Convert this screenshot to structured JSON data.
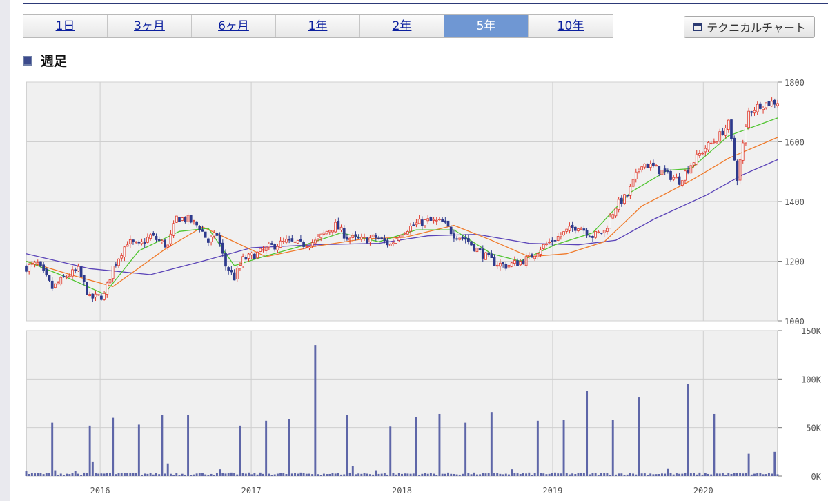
{
  "range_tabs": [
    "1日",
    "3ヶ月",
    "6ヶ月",
    "1年",
    "2年",
    "5年",
    "10年"
  ],
  "active_tab": "5年",
  "technical_chart_label": "テクニカルチャート",
  "section_title": "週足",
  "colors": {
    "up_candle": "#e0392b",
    "down_candle": "#2e3a8c",
    "ma_short": "#4fc52f",
    "ma_mid": "#f07a2a",
    "ma_long": "#5a43b8",
    "volume": "#5e66a8",
    "active_tab": "#6f97d3",
    "plot_bg": "#f0f0f0"
  },
  "chart_data": {
    "type": "candlestick",
    "price_axis": {
      "min": 1000,
      "max": 1800,
      "ticks": [
        1000,
        1200,
        1400,
        1600,
        1800
      ]
    },
    "volume_axis": {
      "min": 0,
      "max": 150000,
      "ticks": [
        0,
        50000,
        100000,
        150000
      ],
      "tick_labels": [
        "0K",
        "50K",
        "100K",
        "150K"
      ]
    },
    "x_start": "2015-07-06",
    "x_end": "2020-06-29",
    "year_labels": [
      {
        "label": "2016",
        "date": "2016-01-01"
      },
      {
        "label": "2017",
        "date": "2017-01-01"
      },
      {
        "label": "2018",
        "date": "2018-01-01"
      },
      {
        "label": "2019",
        "date": "2019-01-01"
      },
      {
        "label": "2020",
        "date": "2020-01-01"
      }
    ],
    "close_trend": [
      [
        "2015-07-06",
        1180
      ],
      [
        "2015-08-03",
        1190
      ],
      [
        "2015-09-07",
        1110
      ],
      [
        "2015-10-12",
        1150
      ],
      [
        "2015-11-09",
        1170
      ],
      [
        "2015-12-07",
        1075
      ],
      [
        "2016-01-11",
        1085
      ],
      [
        "2016-02-01",
        1180
      ],
      [
        "2016-03-07",
        1265
      ],
      [
        "2016-04-04",
        1250
      ],
      [
        "2016-05-02",
        1285
      ],
      [
        "2016-06-13",
        1250
      ],
      [
        "2016-07-04",
        1345
      ],
      [
        "2016-08-01",
        1340
      ],
      [
        "2016-08-29",
        1315
      ],
      [
        "2016-09-19",
        1265
      ],
      [
        "2016-10-10",
        1290
      ],
      [
        "2016-10-31",
        1185
      ],
      [
        "2016-11-21",
        1145
      ],
      [
        "2016-12-12",
        1205
      ],
      [
        "2017-01-16",
        1225
      ],
      [
        "2017-02-20",
        1250
      ],
      [
        "2017-03-27",
        1265
      ],
      [
        "2017-05-01",
        1255
      ],
      [
        "2017-06-05",
        1265
      ],
      [
        "2017-07-03",
        1300
      ],
      [
        "2017-07-24",
        1320
      ],
      [
        "2017-08-21",
        1280
      ],
      [
        "2017-09-25",
        1270
      ],
      [
        "2017-10-30",
        1280
      ],
      [
        "2017-12-04",
        1255
      ],
      [
        "2018-01-01",
        1300
      ],
      [
        "2018-02-05",
        1325
      ],
      [
        "2018-03-05",
        1335
      ],
      [
        "2018-04-09",
        1330
      ],
      [
        "2018-05-07",
        1290
      ],
      [
        "2018-06-04",
        1275
      ],
      [
        "2018-07-09",
        1230
      ],
      [
        "2018-08-13",
        1195
      ],
      [
        "2018-09-10",
        1185
      ],
      [
        "2018-10-08",
        1195
      ],
      [
        "2018-11-05",
        1210
      ],
      [
        "2018-12-03",
        1245
      ],
      [
        "2019-01-07",
        1275
      ],
      [
        "2019-02-04",
        1300
      ],
      [
        "2019-03-04",
        1320
      ],
      [
        "2019-04-08",
        1285
      ],
      [
        "2019-05-06",
        1300
      ],
      [
        "2019-06-03",
        1385
      ],
      [
        "2019-07-01",
        1420
      ],
      [
        "2019-08-05",
        1530
      ],
      [
        "2019-09-02",
        1515
      ],
      [
        "2019-10-07",
        1490
      ],
      [
        "2019-11-04",
        1470
      ],
      [
        "2019-12-02",
        1525
      ],
      [
        "2020-01-06",
        1580
      ],
      [
        "2020-02-03",
        1610
      ],
      [
        "2020-03-02",
        1660
      ],
      [
        "2020-03-23",
        1480
      ],
      [
        "2020-04-20",
        1700
      ],
      [
        "2020-05-18",
        1725
      ],
      [
        "2020-06-29",
        1735
      ]
    ],
    "ma_short": [
      [
        "2015-07-06",
        1200
      ],
      [
        "2015-10-05",
        1150
      ],
      [
        "2016-01-11",
        1090
      ],
      [
        "2016-04-04",
        1235
      ],
      [
        "2016-07-11",
        1300
      ],
      [
        "2016-09-19",
        1310
      ],
      [
        "2016-11-21",
        1185
      ],
      [
        "2017-01-30",
        1215
      ],
      [
        "2017-05-01",
        1250
      ],
      [
        "2017-08-07",
        1295
      ],
      [
        "2017-11-06",
        1265
      ],
      [
        "2018-02-05",
        1305
      ],
      [
        "2018-05-07",
        1305
      ],
      [
        "2018-08-06",
        1225
      ],
      [
        "2018-10-15",
        1200
      ],
      [
        "2019-01-07",
        1255
      ],
      [
        "2019-04-08",
        1295
      ],
      [
        "2019-07-08",
        1430
      ],
      [
        "2019-10-07",
        1505
      ],
      [
        "2019-12-02",
        1510
      ],
      [
        "2020-03-02",
        1620
      ],
      [
        "2020-06-29",
        1680
      ]
    ],
    "ma_mid": [
      [
        "2015-07-06",
        1200
      ],
      [
        "2015-11-02",
        1150
      ],
      [
        "2016-02-01",
        1115
      ],
      [
        "2016-06-06",
        1240
      ],
      [
        "2016-09-05",
        1315
      ],
      [
        "2016-11-21",
        1265
      ],
      [
        "2017-02-06",
        1215
      ],
      [
        "2017-06-05",
        1250
      ],
      [
        "2017-10-02",
        1275
      ],
      [
        "2018-01-08",
        1280
      ],
      [
        "2018-05-07",
        1320
      ],
      [
        "2018-08-06",
        1270
      ],
      [
        "2018-11-05",
        1215
      ],
      [
        "2019-02-04",
        1225
      ],
      [
        "2019-05-06",
        1265
      ],
      [
        "2019-08-05",
        1385
      ],
      [
        "2019-12-02",
        1470
      ],
      [
        "2020-03-02",
        1545
      ],
      [
        "2020-06-29",
        1615
      ]
    ],
    "ma_long": [
      [
        "2015-07-06",
        1225
      ],
      [
        "2015-12-07",
        1175
      ],
      [
        "2016-05-02",
        1155
      ],
      [
        "2016-09-05",
        1200
      ],
      [
        "2017-01-02",
        1245
      ],
      [
        "2017-06-05",
        1255
      ],
      [
        "2017-11-06",
        1260
      ],
      [
        "2018-03-05",
        1285
      ],
      [
        "2018-07-02",
        1290
      ],
      [
        "2018-11-05",
        1260
      ],
      [
        "2019-03-04",
        1255
      ],
      [
        "2019-06-03",
        1270
      ],
      [
        "2019-09-02",
        1340
      ],
      [
        "2020-01-06",
        1420
      ],
      [
        "2020-04-06",
        1490
      ],
      [
        "2020-06-29",
        1540
      ]
    ],
    "volume_spikes": [
      [
        "2015-07-06",
        5000
      ],
      [
        "2015-09-07",
        55000
      ],
      [
        "2015-09-14",
        6000
      ],
      [
        "2015-11-02",
        5000
      ],
      [
        "2015-12-07",
        52000
      ],
      [
        "2015-12-14",
        15000
      ],
      [
        "2016-02-01",
        60000
      ],
      [
        "2016-04-04",
        53000
      ],
      [
        "2016-05-30",
        63000
      ],
      [
        "2016-06-13",
        13000
      ],
      [
        "2016-08-01",
        63000
      ],
      [
        "2016-10-17",
        7000
      ],
      [
        "2016-12-05",
        52000
      ],
      [
        "2017-02-06",
        57000
      ],
      [
        "2017-04-03",
        59000
      ],
      [
        "2017-06-05",
        135000
      ],
      [
        "2017-08-21",
        63000
      ],
      [
        "2017-09-04",
        10000
      ],
      [
        "2017-10-30",
        6000
      ],
      [
        "2017-12-04",
        51000
      ],
      [
        "2018-02-05",
        61000
      ],
      [
        "2018-04-02",
        64000
      ],
      [
        "2018-06-04",
        55000
      ],
      [
        "2018-08-06",
        66000
      ],
      [
        "2018-09-24",
        7000
      ],
      [
        "2018-11-26",
        57000
      ],
      [
        "2019-01-28",
        58000
      ],
      [
        "2019-03-25",
        88000
      ],
      [
        "2019-05-27",
        58000
      ],
      [
        "2019-07-29",
        81000
      ],
      [
        "2019-10-07",
        8000
      ],
      [
        "2019-11-25",
        95000
      ],
      [
        "2020-01-27",
        64000
      ],
      [
        "2020-04-20",
        23000
      ],
      [
        "2020-06-22",
        25000
      ]
    ]
  }
}
